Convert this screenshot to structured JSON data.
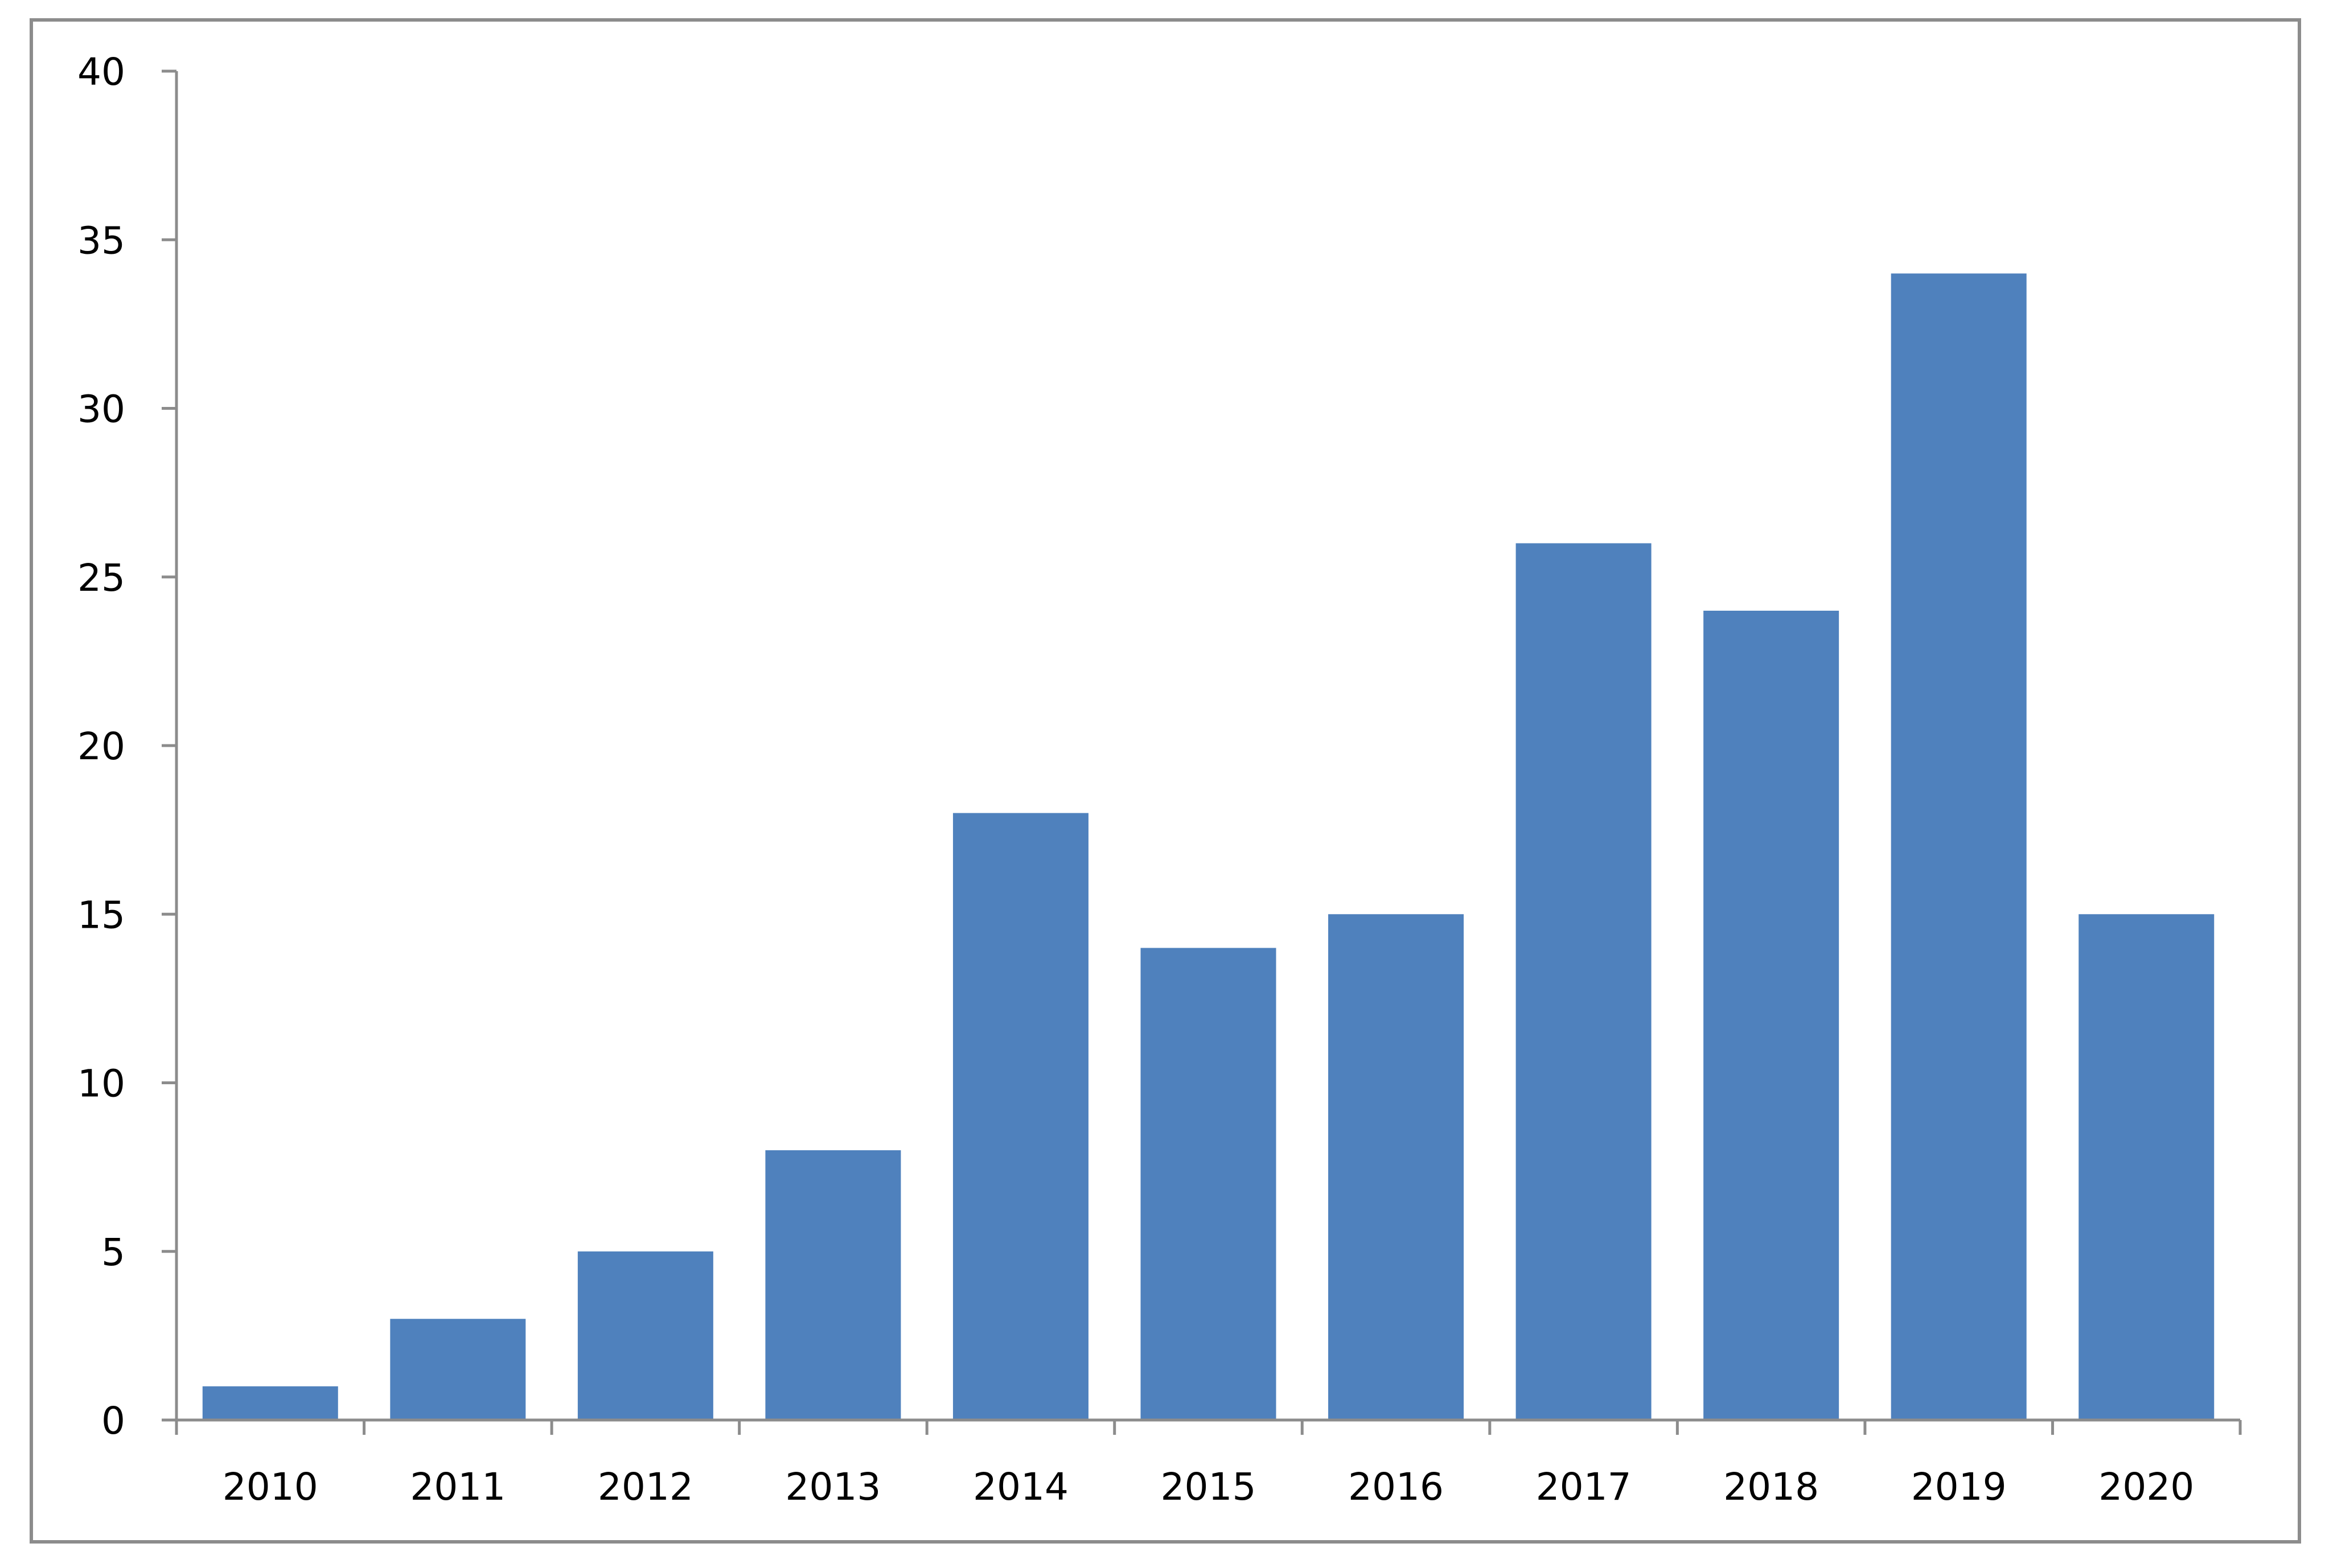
{
  "chart_data": {
    "type": "bar",
    "categories": [
      "2010",
      "2011",
      "2012",
      "2013",
      "2014",
      "2015",
      "2016",
      "2017",
      "2018",
      "2019",
      "2020"
    ],
    "values": [
      1,
      3,
      5,
      8,
      18,
      14,
      15,
      26,
      24,
      34,
      15
    ],
    "title": "",
    "xlabel": "",
    "ylabel": "",
    "ylim": [
      0,
      40
    ],
    "yticks": [
      "0",
      "5",
      "10",
      "15",
      "20",
      "25",
      "30",
      "35",
      "40"
    ],
    "grid": false,
    "legend": "none",
    "bar_color": "#4f81bd",
    "axis_color": "#8c8c8c"
  }
}
